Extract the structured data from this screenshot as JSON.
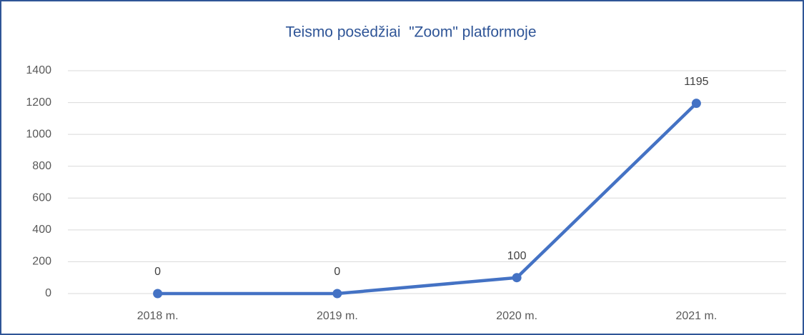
{
  "chart_data": {
    "type": "line",
    "title": "Teismo posėdžiai  \"Zoom\" platformoje",
    "categories": [
      "2018 m.",
      "2019 m.",
      "2020 m.",
      "2021 m."
    ],
    "series": [
      {
        "values": [
          0,
          0,
          100,
          1195
        ],
        "color": "#4472c4"
      }
    ],
    "ylim": [
      0,
      1400
    ],
    "yticks": [
      0,
      200,
      400,
      600,
      800,
      1000,
      1200,
      1400
    ],
    "grid": true,
    "data_labels": true
  }
}
